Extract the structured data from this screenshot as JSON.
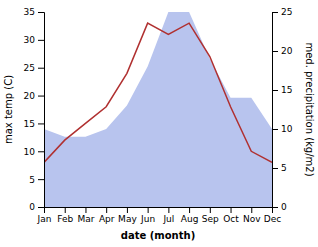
{
  "chart_data": {
    "type": "line",
    "xlabel": "date (month)",
    "ylabel": "max temp (C)",
    "y2label": "med. precipitation (kg/m2)",
    "categories": [
      "Jan",
      "Feb",
      "Mar",
      "Apr",
      "May",
      "Jun",
      "Jul",
      "Aug",
      "Sep",
      "Oct",
      "Nov",
      "Dec"
    ],
    "series": [
      {
        "type": "area",
        "axis": "y2",
        "color": "#b8c4ee",
        "values": [
          10,
          9,
          9,
          10,
          13,
          18,
          25,
          25,
          19,
          14,
          14,
          10
        ]
      },
      {
        "type": "line",
        "color": "#b03030",
        "values": [
          8,
          12,
          15,
          18,
          24,
          33,
          31,
          33,
          27,
          18,
          10,
          8
        ]
      }
    ],
    "ylim": [
      0,
      35
    ],
    "yticks": [
      0,
      5,
      10,
      15,
      20,
      25,
      30,
      35
    ],
    "y2lim": [
      0,
      25
    ],
    "y2ticks": [
      0,
      5,
      10,
      15,
      20,
      25
    ]
  }
}
